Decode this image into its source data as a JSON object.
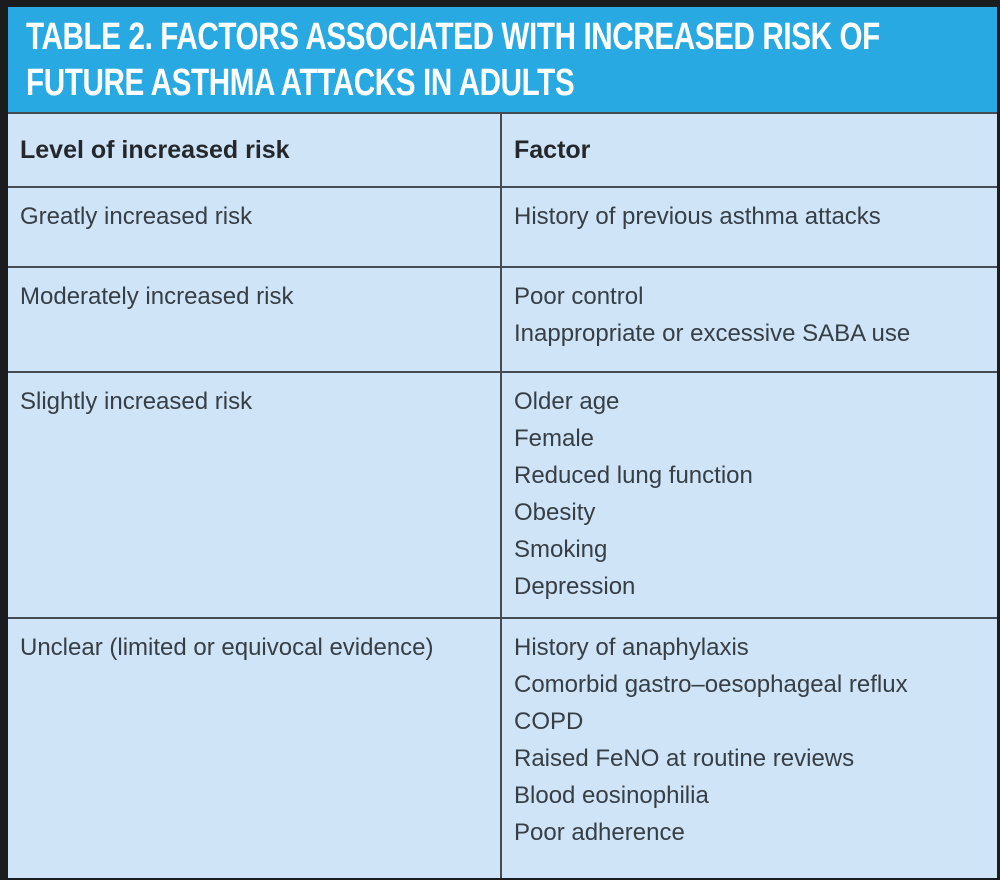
{
  "colors": {
    "title_band_blue": "#29a9e1",
    "cell_light_blue": "#cfe4f6",
    "frame_dark": "#1b1c1e",
    "grid_line": "#454b53",
    "body_text": "#363e46",
    "header_text": "#24282c",
    "title_text": "#ffffff"
  },
  "title": {
    "lines": [
      "TABLE 2. FACTORS ASSOCIATED WITH INCREASED RISK OF",
      "FUTURE ASTHMA ATTACKS IN ADULTS"
    ]
  },
  "table": {
    "columns": [
      "Level of increased risk",
      "Factor"
    ],
    "rows": [
      {
        "level": "Greatly increased risk",
        "factors": [
          "History of previous asthma attacks"
        ]
      },
      {
        "level": "Moderately increased risk",
        "factors": [
          "Poor control",
          "Inappropriate or excessive SABA use"
        ]
      },
      {
        "level": "Slightly increased risk",
        "factors": [
          "Older age",
          "Female",
          "Reduced lung function",
          "Obesity",
          "Smoking",
          "Depression"
        ]
      },
      {
        "level": "Unclear (limited or equivocal evidence)",
        "factors": [
          "History of anaphylaxis",
          "Comorbid gastro–oesophageal reflux",
          "COPD",
          "Raised FeNO at routine reviews",
          "Blood eosinophilia",
          "Poor adherence"
        ]
      }
    ]
  }
}
